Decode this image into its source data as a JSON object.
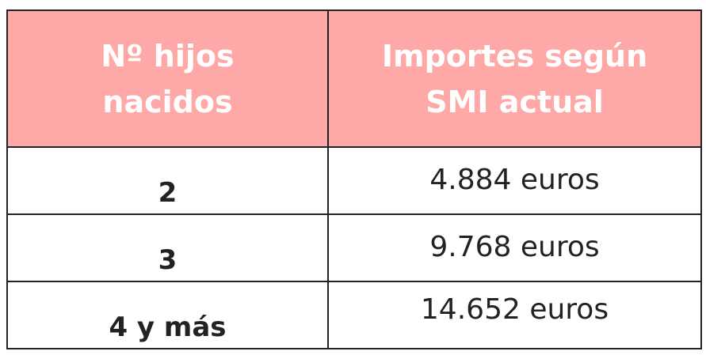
{
  "table": {
    "header": [
      "Nº hijos nacidos",
      "Importes según SMI actual"
    ],
    "rows": [
      [
        "2",
        "4.884 euros"
      ],
      [
        "3",
        "9.768 euros"
      ],
      [
        "4 y más",
        "14.652 euros"
      ]
    ]
  }
}
